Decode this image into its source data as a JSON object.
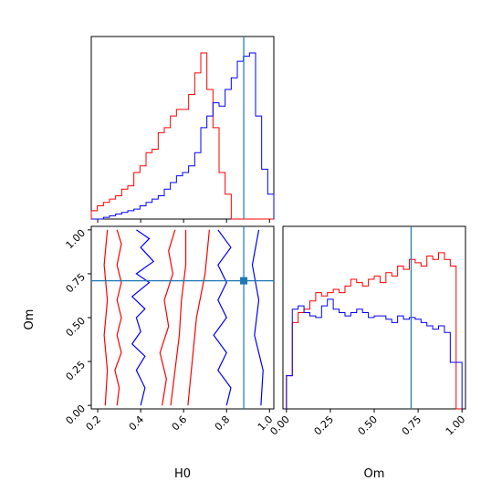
{
  "chart_data": {
    "type": "corner",
    "colors": {
      "series_a": "#ff0000",
      "series_b": "#0000ff",
      "truth": "#1f77b4"
    },
    "params": [
      "H0",
      "Om"
    ],
    "xlabel_h0": "H0",
    "xlabel_om": "Om",
    "ylabel_om": "Om",
    "h0_ticks": [
      "0.2",
      "0.4",
      "0.6",
      "0.8",
      "1.0"
    ],
    "om_ticks": [
      "0.00",
      "0.25",
      "0.50",
      "0.75",
      "1.00"
    ],
    "h0_range": [
      0.17,
      1.02
    ],
    "om_range": [
      -0.02,
      1.02
    ],
    "truth": {
      "H0": 0.88,
      "Om": 0.71
    },
    "h0_hist_edges": [
      0.17,
      1.02
    ],
    "h0_hist_a": [
      0.05,
      0.08,
      0.1,
      0.12,
      0.14,
      0.18,
      0.2,
      0.28,
      0.32,
      0.4,
      0.42,
      0.52,
      0.55,
      0.62,
      0.66,
      0.66,
      0.75,
      0.88,
      1.0,
      0.78,
      0.55,
      0.28,
      0.15,
      0.0,
      0.0,
      0.0,
      0.0,
      0.0,
      0.0,
      0.0
    ],
    "h0_hist_b": [
      0.0,
      0.0,
      0.01,
      0.02,
      0.03,
      0.04,
      0.05,
      0.06,
      0.08,
      0.1,
      0.12,
      0.14,
      0.18,
      0.22,
      0.26,
      0.28,
      0.32,
      0.4,
      0.55,
      0.62,
      0.7,
      0.68,
      0.78,
      0.85,
      0.95,
      0.98,
      1.0,
      0.62,
      0.3,
      0.15
    ],
    "om_hist_a": [
      0.2,
      0.52,
      0.58,
      0.6,
      0.65,
      0.7,
      0.68,
      0.7,
      0.72,
      0.7,
      0.74,
      0.78,
      0.76,
      0.74,
      0.78,
      0.8,
      0.76,
      0.82,
      0.8,
      0.86,
      0.84,
      0.9,
      0.88,
      0.86,
      0.92,
      0.9,
      0.94,
      0.9,
      0.86,
      0.0
    ],
    "om_hist_b": [
      0.2,
      0.6,
      0.62,
      0.58,
      0.56,
      0.55,
      0.62,
      0.66,
      0.6,
      0.58,
      0.56,
      0.58,
      0.6,
      0.58,
      0.55,
      0.56,
      0.56,
      0.54,
      0.52,
      0.56,
      0.54,
      0.55,
      0.54,
      0.52,
      0.5,
      0.48,
      0.5,
      0.46,
      0.28,
      0.28
    ],
    "contours_a": [
      [
        [
          0.245,
          1.0
        ],
        [
          0.23,
          0.8
        ],
        [
          0.245,
          0.6
        ],
        [
          0.23,
          0.4
        ],
        [
          0.245,
          0.2
        ],
        [
          0.235,
          0.0
        ]
      ],
      [
        [
          0.29,
          1.0
        ],
        [
          0.31,
          0.92
        ],
        [
          0.29,
          0.8
        ],
        [
          0.31,
          0.7
        ],
        [
          0.29,
          0.6
        ],
        [
          0.31,
          0.5
        ],
        [
          0.29,
          0.4
        ],
        [
          0.31,
          0.3
        ],
        [
          0.28,
          0.2
        ],
        [
          0.3,
          0.1
        ],
        [
          0.29,
          0.0
        ]
      ],
      [
        [
          0.56,
          1.0
        ],
        [
          0.53,
          0.88
        ],
        [
          0.55,
          0.75
        ],
        [
          0.51,
          0.6
        ],
        [
          0.53,
          0.45
        ],
        [
          0.49,
          0.3
        ],
        [
          0.52,
          0.15
        ],
        [
          0.5,
          0.0
        ]
      ],
      [
        [
          0.61,
          1.0
        ],
        [
          0.61,
          0.8
        ],
        [
          0.59,
          0.6
        ],
        [
          0.58,
          0.4
        ],
        [
          0.56,
          0.2
        ],
        [
          0.54,
          0.0
        ]
      ],
      [
        [
          0.72,
          1.0
        ],
        [
          0.7,
          0.75
        ],
        [
          0.66,
          0.5
        ],
        [
          0.64,
          0.25
        ],
        [
          0.62,
          0.0
        ]
      ]
    ],
    "contours_b": [
      [
        [
          0.38,
          1.0
        ],
        [
          0.44,
          0.95
        ],
        [
          0.4,
          0.9
        ],
        [
          0.46,
          0.82
        ],
        [
          0.38,
          0.75
        ],
        [
          0.44,
          0.7
        ],
        [
          0.36,
          0.62
        ],
        [
          0.42,
          0.55
        ],
        [
          0.38,
          0.5
        ],
        [
          0.4,
          0.42
        ],
        [
          0.36,
          0.35
        ],
        [
          0.42,
          0.28
        ],
        [
          0.38,
          0.2
        ],
        [
          0.42,
          0.1
        ],
        [
          0.4,
          0.0
        ]
      ],
      [
        [
          0.76,
          1.0
        ],
        [
          0.82,
          0.9
        ],
        [
          0.76,
          0.8
        ],
        [
          0.8,
          0.7
        ],
        [
          0.76,
          0.6
        ],
        [
          0.8,
          0.5
        ],
        [
          0.74,
          0.4
        ],
        [
          0.8,
          0.3
        ],
        [
          0.76,
          0.2
        ],
        [
          0.82,
          0.1
        ],
        [
          0.8,
          0.0
        ]
      ],
      [
        [
          0.95,
          1.0
        ],
        [
          0.92,
          0.8
        ],
        [
          0.95,
          0.6
        ],
        [
          0.93,
          0.4
        ],
        [
          0.97,
          0.2
        ],
        [
          0.96,
          0.0
        ]
      ]
    ]
  }
}
